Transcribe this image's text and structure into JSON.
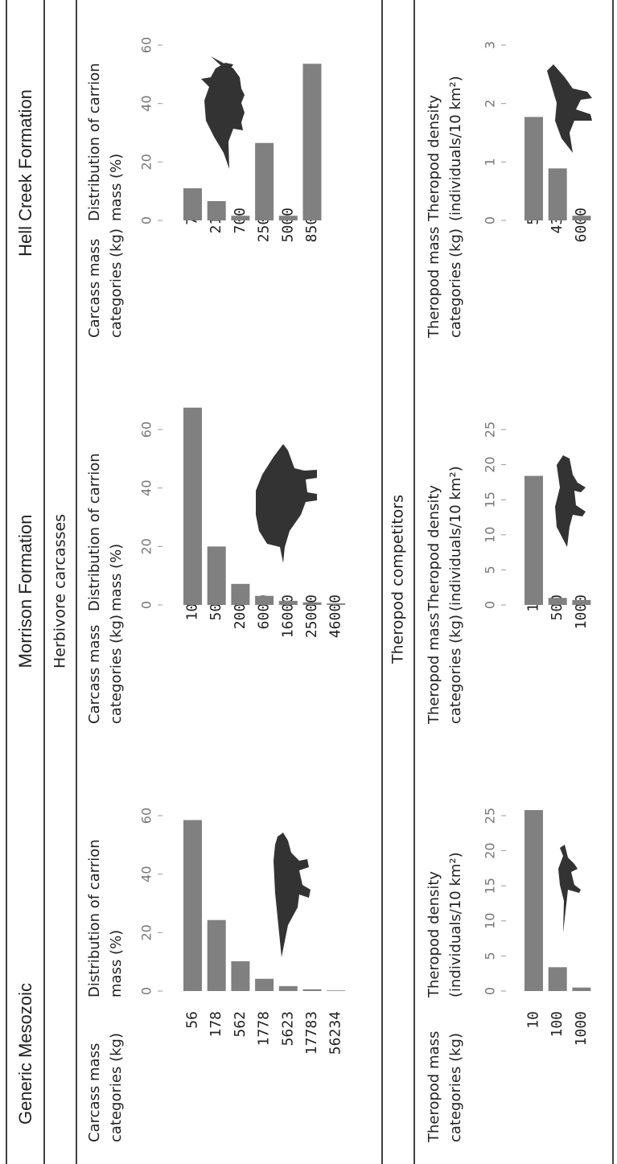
{
  "columns": [
    "Generic Mesozoic",
    "Morrison Formation",
    "Hell Creek Formation"
  ],
  "sections": [
    "Herbivore carcasses",
    "Theropod competitors"
  ],
  "chart_data": [
    {
      "type": "bar",
      "x_label": [
        "Carcass mass",
        "categories (kg)"
      ],
      "y_label": [
        "Distribution of carrion",
        "mass (%)"
      ],
      "categories": [
        "56",
        "178",
        "562",
        "1778",
        "5623",
        "17783",
        "56234"
      ],
      "values": [
        58.5,
        24.3,
        10.2,
        4.2,
        1.7,
        0.6,
        0.2
      ],
      "color": "#808080",
      "ylim": [
        0,
        60
      ],
      "yticks": [
        0,
        20,
        40,
        60
      ]
    },
    {
      "type": "bar",
      "x_label": [
        "Carcass mass",
        "categories (kg)"
      ],
      "y_label": [
        "Distribution of carrion",
        "mass (%)"
      ],
      "categories": [
        "100",
        "500",
        "2000",
        "6000",
        "16000",
        "25000",
        "46000"
      ],
      "values": [
        67.5,
        20,
        7.2,
        3.1,
        1.4,
        0.9,
        0.5
      ],
      "color": "#808080",
      "ylim": [
        0,
        60
      ],
      "yticks": [
        0,
        20,
        40,
        60
      ]
    },
    {
      "type": "bar",
      "x_label": [
        "Carcass mass",
        "categories (kg)"
      ],
      "y_label": [
        "Distribution of carrion",
        "mass (%)"
      ],
      "categories": [
        "75",
        "216",
        "700",
        "2500",
        "5000",
        "8500"
      ],
      "values": [
        11,
        6.6,
        1.6,
        26.5,
        1.6,
        53.6
      ],
      "color": "#808080",
      "ylim": [
        0,
        60
      ],
      "yticks": [
        0,
        20,
        40,
        60
      ]
    },
    {
      "type": "bar",
      "x_label": [
        "Theropod mass",
        "categories (kg)"
      ],
      "y_label": [
        "Theropod density",
        "(individuals/10 km²)"
      ],
      "categories": [
        "10",
        "100",
        "1000"
      ],
      "values": [
        25.8,
        3.4,
        0.5
      ],
      "color": "#808080",
      "ylim": [
        0,
        25
      ],
      "yticks": [
        0,
        5,
        10,
        15,
        20,
        25
      ]
    },
    {
      "type": "bar",
      "x_label": [
        "Theropod mass",
        "categories (kg)"
      ],
      "y_label": [
        "Theropod density",
        "(individuals/10 km²)"
      ],
      "categories": [
        "15",
        "500",
        "1000"
      ],
      "values": [
        18.4,
        1.0,
        0.7
      ],
      "color": "#808080",
      "ylim": [
        0,
        25
      ],
      "yticks": [
        0,
        5,
        10,
        15,
        20,
        25
      ]
    },
    {
      "type": "bar",
      "x_label": [
        "Theropod mass",
        "categories (kg)"
      ],
      "y_label": [
        "Theropod density",
        "(individuals/10 km²)"
      ],
      "categories": [
        "50",
        "430",
        "6000"
      ],
      "values": [
        1.77,
        0.89,
        0.08
      ],
      "color": "#808080",
      "ylim": [
        0,
        3
      ],
      "yticks": [
        0,
        1,
        2,
        3
      ]
    }
  ]
}
